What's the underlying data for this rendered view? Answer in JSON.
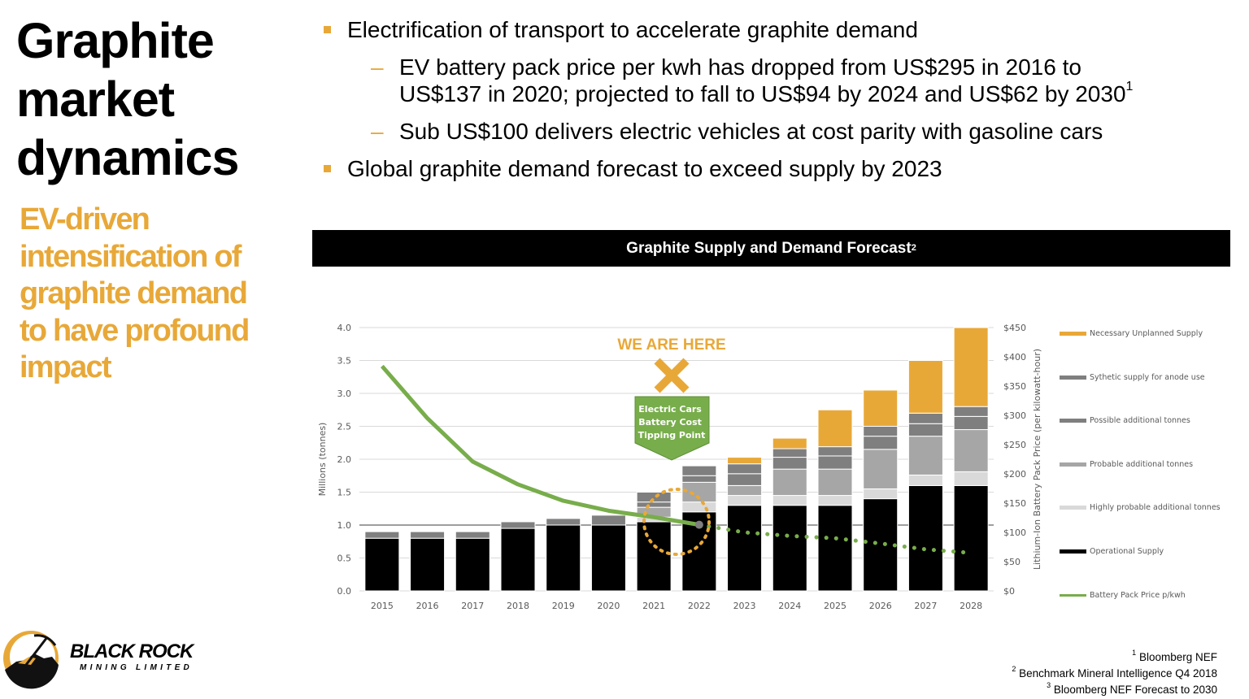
{
  "title": {
    "line1": "Graphite",
    "line2": "market",
    "line3": "dynamics"
  },
  "subtitle": {
    "line1": "EV-driven",
    "line2": "intensification of",
    "line3": "graphite demand",
    "line4": "to have profound",
    "line5": "impact"
  },
  "bullets": [
    {
      "text": "Electrification of transport to accelerate graphite demand"
    },
    {
      "text": "EV battery pack price per kwh has dropped from US$295 in 2016 to",
      "text2": "US$137 in 2020; projected to fall to US$94 by 2024 and US$62 by 2030",
      "sup": "1"
    },
    {
      "text": "Sub US$100 delivers electric vehicles at cost parity with gasoline cars"
    },
    {
      "text": "Global graphite demand forecast to exceed supply by 2023"
    }
  ],
  "bullet_dash": "–",
  "header": {
    "title": "Graphite Supply and Demand Forecast",
    "sup": "2"
  },
  "colors": {
    "accent": "#e8a838",
    "green": "#78ad4b",
    "black": "#000000"
  },
  "chart_data": {
    "type": "bar",
    "stacked": true,
    "title": "Graphite Supply and Demand Forecast",
    "ylabel": "Millions (tonnes)",
    "y2label": "Lithium-Ion Battery Pack Price (per kilowatt-hour)",
    "ylim": [
      0,
      4.0
    ],
    "y2lim": [
      0,
      450
    ],
    "yticks": [
      "0.0",
      "0.5",
      "1.0",
      "1.5",
      "2.0",
      "2.5",
      "3.0",
      "3.5",
      "4.0"
    ],
    "y2ticks": [
      "$0",
      "$50",
      "$100",
      "$150",
      "$200",
      "$250",
      "$300",
      "$350",
      "$400",
      "$450"
    ],
    "grid": true,
    "legend_placement": "right",
    "categories": [
      "2015",
      "2016",
      "2017",
      "2018",
      "2019",
      "2020",
      "2021",
      "2022",
      "2023",
      "2024",
      "2025",
      "2026",
      "2027",
      "2028"
    ],
    "series": [
      {
        "name": "Operational Supply",
        "color": "#000000",
        "values": [
          0.8,
          0.8,
          0.8,
          0.95,
          1.0,
          1.0,
          1.05,
          1.2,
          1.3,
          1.3,
          1.3,
          1.4,
          1.6,
          1.6
        ]
      },
      {
        "name": "Highly probable additional tonnes",
        "color": "#d9d9d9",
        "values": [
          0,
          0,
          0,
          0,
          0,
          0,
          0.07,
          0.15,
          0.15,
          0.15,
          0.15,
          0.15,
          0.16,
          0.21
        ]
      },
      {
        "name": "Probable additional tonnes",
        "color": "#a6a6a6",
        "values": [
          0,
          0,
          0,
          0,
          0,
          0,
          0.15,
          0.3,
          0.15,
          0.4,
          0.4,
          0.6,
          0.59,
          0.64
        ]
      },
      {
        "name": "Possible additional tonnes",
        "color": "#7f7f7f",
        "values": [
          0.1,
          0.1,
          0.1,
          0.1,
          0.1,
          0.15,
          0.08,
          0.1,
          0.18,
          0.18,
          0.2,
          0.2,
          0.19,
          0.2
        ]
      },
      {
        "name": "Sythetic supply for anode use",
        "color": "#7f7f7f",
        "values": [
          0,
          0,
          0,
          0,
          0,
          0,
          0.15,
          0.15,
          0.15,
          0.13,
          0.14,
          0.15,
          0.16,
          0.15
        ]
      },
      {
        "name": "Necessary Unplanned Supply",
        "color": "#e8a838",
        "values": [
          0,
          0,
          0,
          0,
          0,
          0,
          0,
          0,
          0.1,
          0.16,
          0.56,
          0.55,
          0.8,
          1.2
        ]
      }
    ],
    "line": {
      "name": "Battery Pack Price p/kwh",
      "color": "#78ad4b",
      "axis": "right",
      "values": [
        384,
        295,
        221,
        182,
        154,
        137,
        126,
        113,
        100,
        94,
        90,
        81,
        71,
        65
      ],
      "projected_from": "2022"
    },
    "annotations": {
      "marker_label": "WE ARE HERE",
      "callout": [
        "Electric Cars",
        "Battery Cost",
        "Tipping Point"
      ]
    }
  },
  "logo": {
    "name": "BLACK ROCK",
    "tagline": "MINING LIMITED"
  },
  "footnotes": [
    {
      "sup": "1",
      "text": "Bloomberg NEF"
    },
    {
      "sup": "2",
      "text": "Benchmark Mineral Intelligence Q4 2018"
    },
    {
      "sup": "3",
      "text": "Bloomberg NEF Forecast to 2030"
    }
  ]
}
